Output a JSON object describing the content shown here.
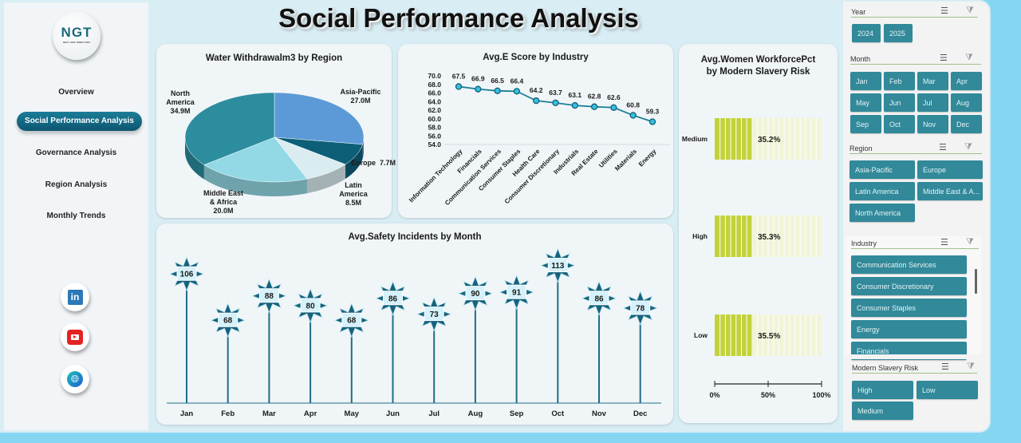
{
  "title": "Social Performance Analysis",
  "logo": {
    "text": "NGT",
    "subtext": "NEXT GEN TEMPLATES"
  },
  "nav": [
    "Overview",
    "Social Performance Analysis",
    "Governance Analysis",
    "Region Analysis",
    "Monthly Trends"
  ],
  "nav_active": 1,
  "social": [
    "linkedin-icon",
    "youtube-icon",
    "globe-icon"
  ],
  "colors": {
    "accent": "#31899a",
    "nav_active": "#0d5f7a",
    "bar_fill": "#c2d23c",
    "bar_empty": "#f1f4d8",
    "line": "#1b7f99"
  },
  "chart_data": [
    {
      "type": "pie",
      "title": "Water Withdrawalm3 by Region",
      "categories": [
        "Asia-Pacific",
        "Europe",
        "Latin America",
        "Middle East & Africa",
        "North America"
      ],
      "values": [
        27.0,
        7.7,
        8.5,
        20.0,
        34.9
      ],
      "labels": [
        "27.0M",
        "7.7M",
        "8.5M",
        "20.0M",
        "34.9M"
      ],
      "colors": [
        "#5b9ad6",
        "#0d5f78",
        "#dbecf1",
        "#92d9e5",
        "#2c8d9f"
      ]
    },
    {
      "type": "line",
      "title": "Avg.E Score by Industry",
      "categories": [
        "Information Technology",
        "Financials",
        "Communication Services",
        "Consumer Staples",
        "Health Care",
        "Consumer Discretionary",
        "Industrials",
        "Real Estate",
        "Utilities",
        "Materials",
        "Energy"
      ],
      "values": [
        67.5,
        66.9,
        66.5,
        66.4,
        64.2,
        63.7,
        63.1,
        62.8,
        62.6,
        60.8,
        59.3
      ],
      "ylim": [
        54,
        70
      ],
      "yticks": [
        "70.0",
        "68.0",
        "66.0",
        "64.0",
        "62.0",
        "60.0",
        "58.0",
        "56.0",
        "54.0"
      ]
    },
    {
      "type": "bar",
      "title": "Avg.Safety Incidents by Month",
      "categories": [
        "Jan",
        "Feb",
        "Mar",
        "Apr",
        "May",
        "Jun",
        "Jul",
        "Aug",
        "Sep",
        "Oct",
        "Nov",
        "Dec"
      ],
      "values": [
        106,
        68,
        88,
        80,
        68,
        86,
        73,
        90,
        91,
        113,
        86,
        78
      ]
    },
    {
      "type": "bar",
      "title": "Avg.Women WorkforcePct by Modern Slavery Risk",
      "categories": [
        "Medium",
        "High",
        "Low"
      ],
      "values": [
        35.2,
        35.3,
        35.5
      ],
      "labels": [
        "35.2%",
        "35.3%",
        "35.5%"
      ],
      "xticks": [
        "0%",
        "50%",
        "100%"
      ],
      "xlim": [
        0,
        100
      ]
    }
  ],
  "slicers": {
    "year": {
      "title": "Year",
      "items": [
        "2024",
        "2025"
      ]
    },
    "month": {
      "title": "Month",
      "items": [
        "Jan",
        "Feb",
        "Mar",
        "Apr",
        "May",
        "Jun",
        "Jul",
        "Aug",
        "Sep",
        "Oct",
        "Nov",
        "Dec"
      ]
    },
    "region": {
      "title": "Region",
      "items": [
        "Asia-Pacific",
        "Europe",
        "Latin America",
        "Middle East & A...",
        "North America"
      ]
    },
    "industry": {
      "title": "Industry",
      "items": [
        "Communication Services",
        "Consumer Discretionary",
        "Consumer Staples",
        "Energy",
        "Financials"
      ]
    },
    "slavery": {
      "title": "Modern Slavery Risk",
      "items": [
        "High",
        "Low",
        "Medium"
      ]
    }
  }
}
